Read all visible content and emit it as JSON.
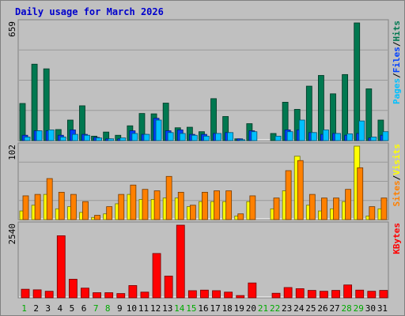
{
  "title": "Daily usage for March 2026",
  "colors": {
    "hits": "#007850",
    "files": "#0040ff",
    "pages": "#00c0ff",
    "visits": "#ffff00",
    "sites": "#ff8000",
    "kbytes": "#ff0000",
    "weekend_day": "#00aa00",
    "weekday": "#000000",
    "panel_bg": "#c0c0c0"
  },
  "chart_data": [
    {
      "type": "bar",
      "panel": "hits",
      "max_label": "659",
      "ylim": [
        0,
        659
      ],
      "label_parts": [
        "Pages",
        "/",
        "Files",
        "/",
        "Hits"
      ],
      "categories": [
        "1",
        "2",
        "3",
        "4",
        "5",
        "6",
        "7",
        "8",
        "9",
        "10",
        "11",
        "12",
        "13",
        "14",
        "15",
        "16",
        "17",
        "18",
        "19",
        "20",
        "21",
        "22",
        "23",
        "24",
        "25",
        "26",
        "27",
        "28",
        "29",
        "30",
        "31"
      ],
      "series": [
        {
          "name": "Hits",
          "values": [
            208,
            428,
            402,
            62,
            115,
            195,
            25,
            48,
            30,
            83,
            152,
            150,
            210,
            72,
            75,
            50,
            235,
            135,
            10,
            95,
            0,
            40,
            215,
            175,
            305,
            365,
            262,
            370,
            659,
            290,
            115
          ]
        },
        {
          "name": "Files",
          "values": [
            30,
            55,
            55,
            30,
            60,
            35,
            18,
            10,
            10,
            55,
            35,
            125,
            55,
            60,
            35,
            35,
            40,
            45,
            10,
            55,
            0,
            0,
            60,
            60,
            45,
            35,
            40,
            30,
            40,
            15,
            30
          ]
        },
        {
          "name": "Pages",
          "values": [
            20,
            55,
            60,
            20,
            35,
            30,
            15,
            10,
            15,
            40,
            35,
            115,
            45,
            40,
            30,
            25,
            40,
            45,
            5,
            50,
            0,
            25,
            50,
            115,
            45,
            60,
            40,
            38,
            110,
            20,
            50
          ]
        }
      ]
    },
    {
      "type": "bar",
      "panel": "visits",
      "max_label": "102",
      "ylim": [
        0,
        102
      ],
      "label_parts": [
        "Sites",
        "/",
        "Visits"
      ],
      "categories": [
        "1",
        "2",
        "3",
        "4",
        "5",
        "6",
        "7",
        "8",
        "9",
        "10",
        "11",
        "12",
        "13",
        "14",
        "15",
        "16",
        "17",
        "18",
        "19",
        "20",
        "21",
        "22",
        "23",
        "24",
        "25",
        "26",
        "27",
        "28",
        "29",
        "30",
        "31"
      ],
      "series": [
        {
          "name": "Visits",
          "values": [
            12,
            20,
            35,
            15,
            18,
            10,
            3,
            8,
            22,
            35,
            28,
            28,
            30,
            30,
            18,
            25,
            25,
            25,
            5,
            25,
            0,
            15,
            40,
            88,
            20,
            12,
            15,
            25,
            102,
            5,
            15
          ]
        },
        {
          "name": "Sites",
          "values": [
            33,
            35,
            57,
            38,
            35,
            25,
            6,
            18,
            35,
            48,
            42,
            40,
            60,
            38,
            20,
            38,
            40,
            40,
            8,
            33,
            0,
            30,
            68,
            82,
            35,
            30,
            30,
            42,
            72,
            18,
            30
          ]
        }
      ]
    },
    {
      "type": "bar",
      "panel": "kbytes",
      "max_label": "2540",
      "ylim": [
        0,
        2540
      ],
      "label_parts": [
        "KBytes"
      ],
      "categories": [
        "1",
        "2",
        "3",
        "4",
        "5",
        "6",
        "7",
        "8",
        "9",
        "10",
        "11",
        "12",
        "13",
        "14",
        "15",
        "16",
        "17",
        "18",
        "19",
        "20",
        "21",
        "22",
        "23",
        "24",
        "25",
        "26",
        "27",
        "28",
        "29",
        "30",
        "31"
      ],
      "series": [
        {
          "name": "KBytes",
          "values": [
            300,
            280,
            230,
            2170,
            650,
            340,
            180,
            180,
            150,
            430,
            200,
            1550,
            760,
            2540,
            250,
            270,
            250,
            200,
            80,
            520,
            0,
            160,
            360,
            320,
            260,
            230,
            260,
            450,
            270,
            230,
            260
          ]
        }
      ]
    }
  ],
  "x_axis": {
    "labels": [
      "1",
      "2",
      "3",
      "4",
      "5",
      "6",
      "7",
      "8",
      "9",
      "10",
      "11",
      "12",
      "13",
      "14",
      "15",
      "16",
      "17",
      "18",
      "19",
      "20",
      "21",
      "22",
      "23",
      "24",
      "25",
      "26",
      "27",
      "28",
      "29",
      "30",
      "31"
    ],
    "weekend": [
      1,
      7,
      8,
      14,
      15,
      21,
      22,
      28,
      29
    ]
  }
}
